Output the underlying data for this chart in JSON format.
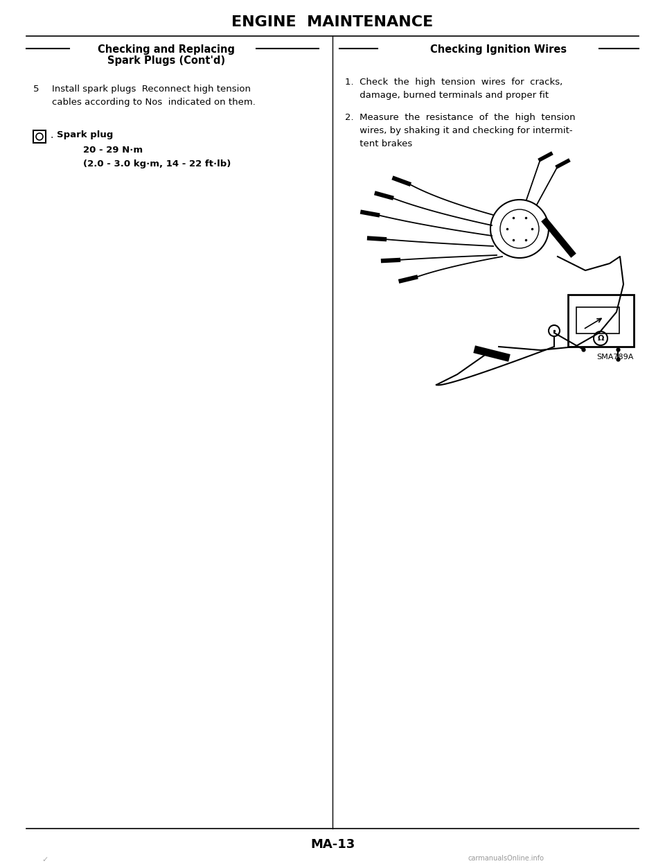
{
  "bg_color": "#ffffff",
  "page_width": 9.6,
  "page_height": 12.49,
  "title": "ENGINE  MAINTENANCE",
  "title_fontsize": 16,
  "left_section_header1": "Checking and Replacing",
  "left_section_header2": "Spark Plugs (Cont'd)",
  "right_section_header": "Checking Ignition Wires",
  "diagram_label": "SMA789A",
  "page_number": "MA-13",
  "footer_text": "carmanualsOnline.info"
}
